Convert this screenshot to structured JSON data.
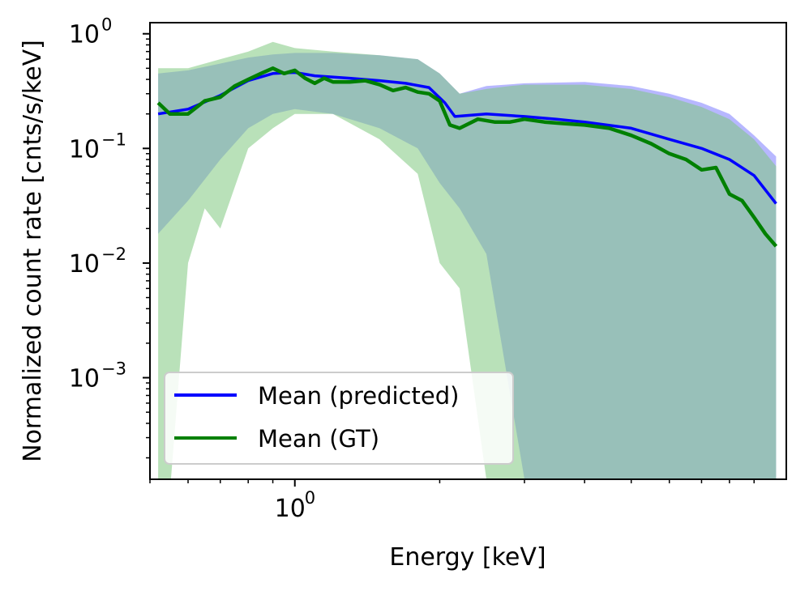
{
  "chart_data": {
    "type": "line",
    "title": "",
    "xlabel": "Energy [keV]",
    "ylabel": "Normalized count rate [cnts/s/keV]",
    "x_scale": "log",
    "y_scale": "log",
    "xlim": [
      0.5,
      10.5
    ],
    "ylim": [
      0.00013,
      1.25
    ],
    "x_ticks": [
      {
        "value": 1,
        "base": "10",
        "exp": "0"
      }
    ],
    "y_ticks": [
      {
        "value": 0.001,
        "base": "10",
        "exp": "−3"
      },
      {
        "value": 0.01,
        "base": "10",
        "exp": "−2"
      },
      {
        "value": 0.1,
        "base": "10",
        "exp": "−1"
      },
      {
        "value": 1,
        "base": "10",
        "exp": "0"
      }
    ],
    "grid": false,
    "legend_position": "lower-left",
    "series": [
      {
        "name": "Mean (predicted)",
        "color": "#0000ff",
        "x": [
          0.52,
          0.6,
          0.7,
          0.8,
          0.9,
          1.0,
          1.1,
          1.3,
          1.5,
          1.7,
          1.9,
          2.05,
          2.15,
          2.5,
          3.0,
          3.5,
          4.0,
          5.0,
          6.0,
          7.0,
          8.0,
          9.0,
          10.0
        ],
        "y": [
          0.2,
          0.22,
          0.29,
          0.39,
          0.45,
          0.46,
          0.43,
          0.41,
          0.39,
          0.37,
          0.34,
          0.25,
          0.19,
          0.2,
          0.19,
          0.18,
          0.17,
          0.15,
          0.12,
          0.1,
          0.08,
          0.058,
          0.033
        ]
      },
      {
        "name": "Mean (GT)",
        "color": "#008000",
        "x": [
          0.52,
          0.55,
          0.6,
          0.65,
          0.7,
          0.75,
          0.8,
          0.85,
          0.9,
          0.95,
          1.0,
          1.05,
          1.1,
          1.15,
          1.2,
          1.3,
          1.4,
          1.5,
          1.6,
          1.7,
          1.8,
          1.9,
          2.0,
          2.1,
          2.2,
          2.4,
          2.6,
          2.8,
          3.0,
          3.3,
          3.6,
          4.0,
          4.5,
          5.0,
          5.5,
          6.0,
          6.5,
          7.0,
          7.5,
          8.0,
          8.5,
          9.0,
          9.5,
          10.0
        ],
        "y": [
          0.25,
          0.2,
          0.2,
          0.26,
          0.28,
          0.35,
          0.4,
          0.45,
          0.5,
          0.45,
          0.48,
          0.41,
          0.37,
          0.41,
          0.38,
          0.38,
          0.39,
          0.36,
          0.32,
          0.34,
          0.31,
          0.3,
          0.26,
          0.16,
          0.15,
          0.18,
          0.17,
          0.17,
          0.18,
          0.17,
          0.165,
          0.16,
          0.15,
          0.13,
          0.11,
          0.09,
          0.08,
          0.065,
          0.068,
          0.04,
          0.035,
          0.025,
          0.018,
          0.014
        ]
      }
    ],
    "bands": [
      {
        "color": "#7b7bff",
        "x": [
          0.52,
          0.6,
          0.7,
          0.8,
          0.9,
          1.0,
          1.2,
          1.5,
          1.8,
          2.0,
          2.2,
          2.5,
          3.0,
          4.0,
          5.0,
          6.0,
          7.0,
          8.0,
          9.0,
          10.0
        ],
        "upper": [
          0.45,
          0.48,
          0.55,
          0.62,
          0.66,
          0.68,
          0.68,
          0.65,
          0.6,
          0.45,
          0.3,
          0.35,
          0.37,
          0.38,
          0.35,
          0.3,
          0.25,
          0.2,
          0.13,
          0.085
        ],
        "lower": [
          0.018,
          0.035,
          0.08,
          0.15,
          0.2,
          0.22,
          0.2,
          0.15,
          0.1,
          0.05,
          0.03,
          0.012,
          0.00013,
          0.00013,
          0.00013,
          0.00013,
          0.00013,
          0.00013,
          0.00013,
          0.00013
        ]
      },
      {
        "color": "#7fc87f",
        "x": [
          0.52,
          0.55,
          0.6,
          0.65,
          0.7,
          0.8,
          0.9,
          1.0,
          1.2,
          1.5,
          1.8,
          2.0,
          2.2,
          2.5,
          2.8,
          3.0,
          4.0,
          5.0,
          6.0,
          7.0,
          8.0,
          9.0,
          10.0
        ],
        "upper": [
          0.5,
          0.5,
          0.5,
          0.55,
          0.6,
          0.7,
          0.85,
          0.75,
          0.7,
          0.65,
          0.6,
          0.45,
          0.3,
          0.33,
          0.35,
          0.36,
          0.36,
          0.33,
          0.28,
          0.23,
          0.18,
          0.12,
          0.07
        ],
        "lower": [
          0.00013,
          0.0001,
          0.01,
          0.03,
          0.02,
          0.1,
          0.15,
          0.2,
          0.2,
          0.12,
          0.06,
          0.01,
          0.006,
          0.00013,
          0.00013,
          0.00013,
          0.00013,
          0.00013,
          0.00013,
          0.00013,
          0.00013,
          0.00013,
          0.00013
        ]
      }
    ],
    "legend": [
      {
        "label": "Mean (predicted)",
        "color": "#0000ff"
      },
      {
        "label": "Mean (GT)",
        "color": "#008000"
      }
    ]
  }
}
